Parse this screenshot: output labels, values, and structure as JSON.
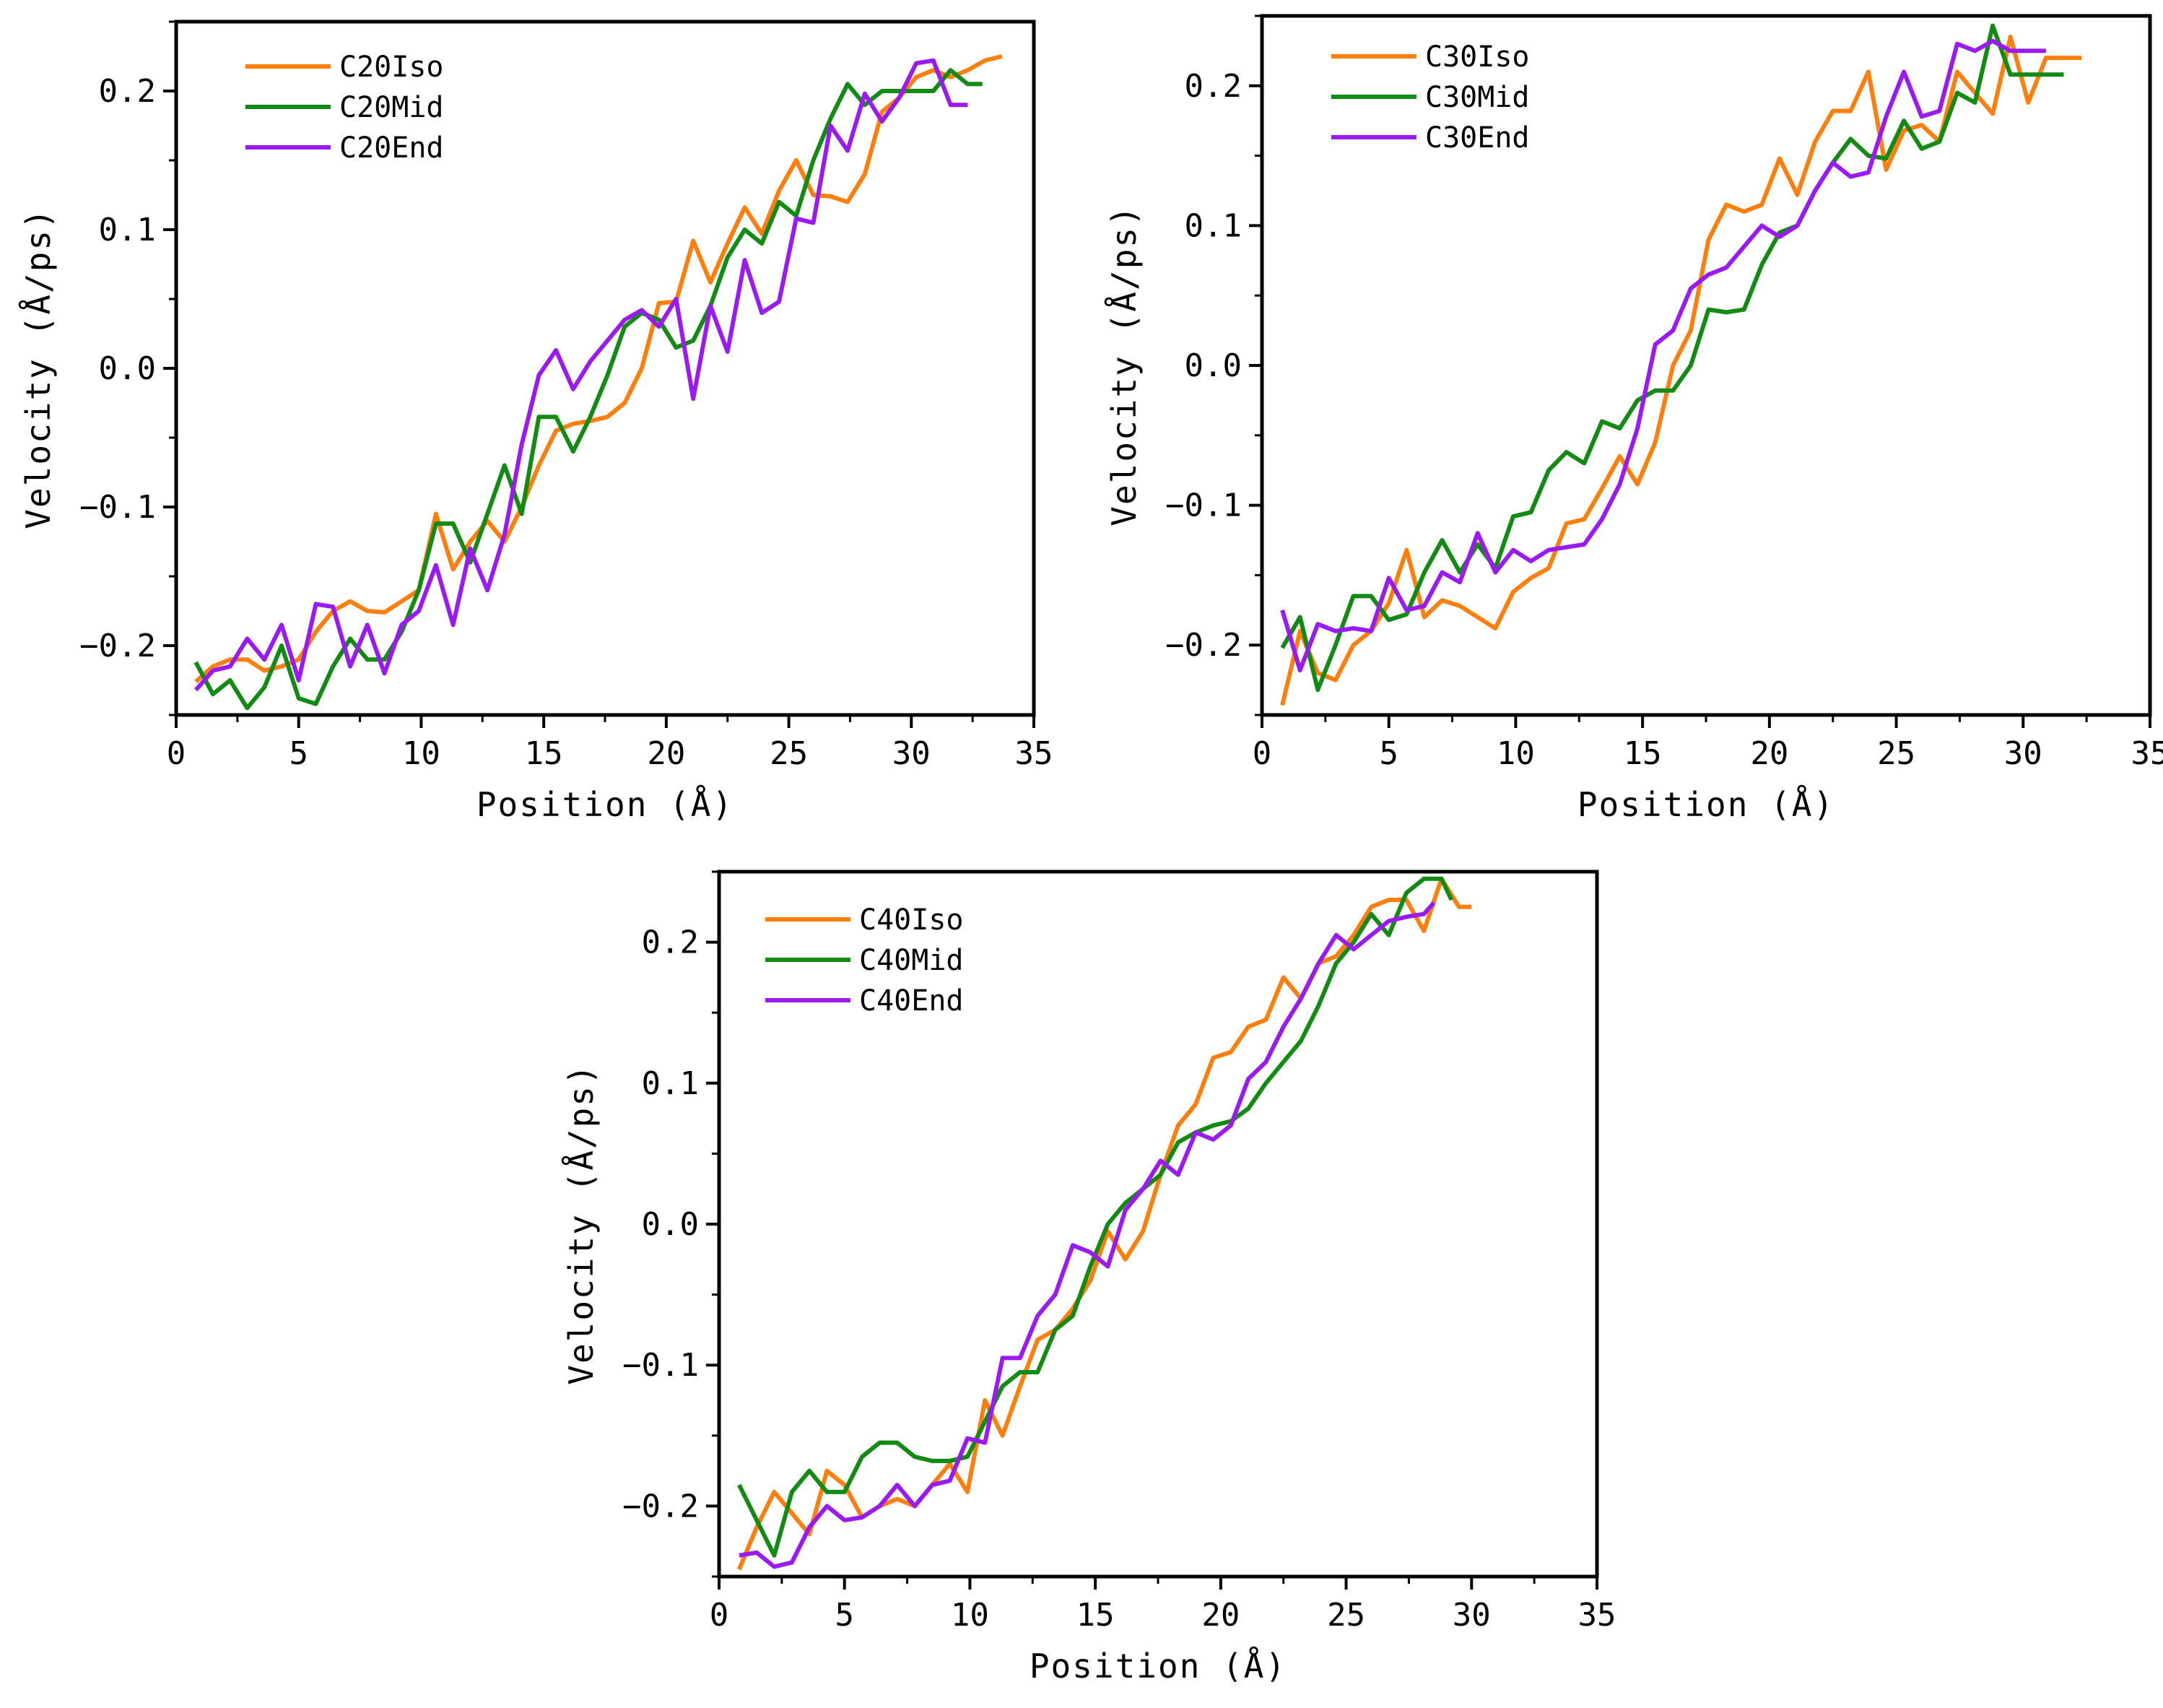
{
  "colors": {
    "iso": "#FF7F0E",
    "mid": "#138A13",
    "end": "#9A1BF2"
  },
  "chart_data": [
    {
      "type": "line",
      "title": "",
      "xlabel": "Position (Å)",
      "ylabel": "Velocity (Å/ps)",
      "xlim": [
        0,
        35
      ],
      "ylim": [
        -0.25,
        0.25
      ],
      "xticks": [
        0,
        5,
        10,
        15,
        20,
        25,
        30,
        35
      ],
      "xtick_labels": [
        "0",
        "5",
        "10",
        "15",
        "20",
        "25",
        "30",
        "35"
      ],
      "yticks": [
        -0.2,
        -0.1,
        0.0,
        0.1,
        0.2
      ],
      "ytick_labels": [
        "−0.2",
        "−0.1",
        "0.0",
        "0.1",
        "0.2"
      ],
      "legend_position": "top-left",
      "series": [
        {
          "name": "C20Iso",
          "color_key": "iso",
          "x": [
            0.8,
            1.5,
            2.2,
            2.9,
            3.6,
            4.3,
            5.0,
            5.7,
            6.4,
            7.1,
            7.8,
            8.5,
            9.2,
            9.9,
            10.6,
            11.3,
            12.0,
            12.7,
            13.4,
            14.1,
            14.8,
            15.5,
            16.2,
            16.9,
            17.6,
            18.3,
            19.0,
            19.7,
            20.4,
            21.1,
            21.8,
            22.5,
            23.2,
            23.9,
            24.6,
            25.3,
            26.0,
            26.7,
            27.4,
            28.1,
            28.8,
            29.5,
            30.2,
            30.9,
            31.6,
            32.3,
            33.0,
            33.7
          ],
          "y": [
            -0.226,
            -0.215,
            -0.21,
            -0.21,
            -0.218,
            -0.215,
            -0.21,
            -0.19,
            -0.175,
            -0.168,
            -0.175,
            -0.176,
            -0.168,
            -0.16,
            -0.105,
            -0.145,
            -0.125,
            -0.11,
            -0.125,
            -0.1,
            -0.07,
            -0.045,
            -0.04,
            -0.038,
            -0.035,
            -0.025,
            0.0,
            0.047,
            0.048,
            0.092,
            0.062,
            0.09,
            0.116,
            0.097,
            0.128,
            0.15,
            0.125,
            0.124,
            0.12,
            0.14,
            0.185,
            0.195,
            0.21,
            0.215,
            0.21,
            0.215,
            0.222,
            0.225
          ]
        },
        {
          "name": "C20Mid",
          "color_key": "mid",
          "x": [
            0.8,
            1.5,
            2.2,
            2.9,
            3.6,
            4.3,
            5.0,
            5.7,
            6.4,
            7.1,
            7.8,
            8.5,
            9.2,
            9.9,
            10.6,
            11.3,
            12.0,
            12.7,
            13.4,
            14.1,
            14.8,
            15.5,
            16.2,
            16.9,
            17.6,
            18.3,
            19.0,
            19.7,
            20.4,
            21.1,
            21.8,
            22.5,
            23.2,
            23.9,
            24.6,
            25.3,
            26.0,
            26.7,
            27.4,
            28.1,
            28.8,
            29.5,
            30.2,
            30.9,
            31.6,
            32.3,
            32.9
          ],
          "y": [
            -0.212,
            -0.235,
            -0.225,
            -0.245,
            -0.23,
            -0.2,
            -0.238,
            -0.242,
            -0.215,
            -0.195,
            -0.21,
            -0.21,
            -0.19,
            -0.16,
            -0.112,
            -0.112,
            -0.14,
            -0.105,
            -0.07,
            -0.105,
            -0.035,
            -0.035,
            -0.06,
            -0.035,
            -0.005,
            0.03,
            0.04,
            0.035,
            0.015,
            0.02,
            0.045,
            0.08,
            0.1,
            0.09,
            0.12,
            0.11,
            0.15,
            0.18,
            0.205,
            0.19,
            0.2,
            0.2,
            0.2,
            0.2,
            0.215,
            0.205,
            0.205
          ]
        },
        {
          "name": "C20End",
          "color_key": "end",
          "x": [
            0.8,
            1.5,
            2.2,
            2.9,
            3.6,
            4.3,
            5.0,
            5.7,
            6.4,
            7.1,
            7.8,
            8.5,
            9.2,
            9.9,
            10.6,
            11.3,
            12.0,
            12.7,
            13.4,
            14.1,
            14.8,
            15.5,
            16.2,
            16.9,
            17.6,
            18.3,
            19.0,
            19.7,
            20.4,
            21.1,
            21.8,
            22.5,
            23.2,
            23.9,
            24.6,
            25.3,
            26.0,
            26.7,
            27.4,
            28.1,
            28.8,
            29.5,
            30.2,
            30.9,
            31.6,
            32.3
          ],
          "y": [
            -0.232,
            -0.218,
            -0.215,
            -0.195,
            -0.21,
            -0.185,
            -0.225,
            -0.17,
            -0.172,
            -0.215,
            -0.185,
            -0.22,
            -0.185,
            -0.175,
            -0.142,
            -0.185,
            -0.13,
            -0.16,
            -0.12,
            -0.055,
            -0.005,
            0.013,
            -0.015,
            0.005,
            0.02,
            0.035,
            0.042,
            0.03,
            0.05,
            -0.022,
            0.045,
            0.012,
            0.078,
            0.04,
            0.048,
            0.108,
            0.105,
            0.175,
            0.157,
            0.198,
            0.178,
            0.195,
            0.22,
            0.222,
            0.19,
            0.19
          ]
        }
      ]
    },
    {
      "type": "line",
      "title": "",
      "xlabel": "Position (Å)",
      "ylabel": "Velocity (Å/ps)",
      "xlim": [
        0,
        35
      ],
      "ylim": [
        -0.25,
        0.25
      ],
      "xticks": [
        0,
        5,
        10,
        15,
        20,
        25,
        30,
        35
      ],
      "xtick_labels": [
        "0",
        "5",
        "10",
        "15",
        "20",
        "25",
        "30",
        "35"
      ],
      "yticks": [
        -0.2,
        -0.1,
        0.0,
        0.1,
        0.2
      ],
      "ytick_labels": [
        "−0.2",
        "−0.1",
        "0.0",
        "0.1",
        "0.2"
      ],
      "legend_position": "top-left",
      "series": [
        {
          "name": "C30Iso",
          "color_key": "iso",
          "x": [
            0.8,
            1.5,
            2.2,
            2.9,
            3.6,
            4.3,
            5.0,
            5.7,
            6.4,
            7.1,
            7.8,
            8.5,
            9.2,
            9.9,
            10.6,
            11.3,
            12.0,
            12.7,
            13.4,
            14.1,
            14.8,
            15.5,
            16.2,
            16.9,
            17.6,
            18.3,
            19.0,
            19.7,
            20.4,
            21.1,
            21.8,
            22.5,
            23.2,
            23.9,
            24.6,
            25.3,
            26.0,
            26.7,
            27.4,
            28.1,
            28.8,
            29.5,
            30.2,
            30.9,
            31.6,
            32.3
          ],
          "y": [
            -0.243,
            -0.19,
            -0.22,
            -0.225,
            -0.2,
            -0.19,
            -0.17,
            -0.132,
            -0.18,
            -0.168,
            -0.172,
            -0.18,
            -0.188,
            -0.162,
            -0.152,
            -0.145,
            -0.113,
            -0.11,
            -0.088,
            -0.065,
            -0.085,
            -0.055,
            0.0,
            0.025,
            0.09,
            0.115,
            0.11,
            0.115,
            0.148,
            0.122,
            0.16,
            0.182,
            0.182,
            0.21,
            0.14,
            0.168,
            0.172,
            0.16,
            0.21,
            0.195,
            0.18,
            0.235,
            0.188,
            0.22,
            0.22,
            0.22
          ]
        },
        {
          "name": "C30Mid",
          "color_key": "mid",
          "x": [
            0.8,
            1.5,
            2.2,
            2.9,
            3.6,
            4.3,
            5.0,
            5.7,
            6.4,
            7.1,
            7.8,
            8.5,
            9.2,
            9.9,
            10.6,
            11.3,
            12.0,
            12.7,
            13.4,
            14.1,
            14.8,
            15.5,
            16.2,
            16.9,
            17.6,
            18.3,
            19.0,
            19.7,
            20.4,
            21.1,
            21.8,
            22.5,
            23.2,
            23.9,
            24.6,
            25.3,
            26.0,
            26.7,
            27.4,
            28.1,
            28.8,
            29.5,
            30.2,
            30.9,
            31.6
          ],
          "y": [
            -0.202,
            -0.18,
            -0.232,
            -0.2,
            -0.165,
            -0.165,
            -0.182,
            -0.178,
            -0.148,
            -0.125,
            -0.148,
            -0.128,
            -0.145,
            -0.108,
            -0.105,
            -0.075,
            -0.062,
            -0.07,
            -0.04,
            -0.045,
            -0.025,
            -0.018,
            -0.018,
            0.0,
            0.04,
            0.038,
            0.04,
            0.072,
            0.095,
            0.1,
            0.125,
            0.145,
            0.162,
            0.15,
            0.148,
            0.175,
            0.155,
            0.16,
            0.195,
            0.188,
            0.243,
            0.208,
            0.208,
            0.208,
            0.208
          ]
        },
        {
          "name": "C30End",
          "color_key": "end",
          "x": [
            0.8,
            1.5,
            2.2,
            2.9,
            3.6,
            4.3,
            5.0,
            5.7,
            6.4,
            7.1,
            7.8,
            8.5,
            9.2,
            9.9,
            10.6,
            11.3,
            12.0,
            12.7,
            13.4,
            14.1,
            14.8,
            15.5,
            16.2,
            16.9,
            17.6,
            18.3,
            19.0,
            19.7,
            20.4,
            21.1,
            21.8,
            22.5,
            23.2,
            23.9,
            24.6,
            25.3,
            26.0,
            26.7,
            27.4,
            28.1,
            28.8,
            29.5,
            30.2,
            30.9
          ],
          "y": [
            -0.175,
            -0.218,
            -0.185,
            -0.19,
            -0.188,
            -0.19,
            -0.152,
            -0.175,
            -0.172,
            -0.148,
            -0.155,
            -0.12,
            -0.148,
            -0.132,
            -0.14,
            -0.132,
            -0.13,
            -0.128,
            -0.11,
            -0.085,
            -0.045,
            0.015,
            0.025,
            0.055,
            0.065,
            0.07,
            0.085,
            0.1,
            0.092,
            0.1,
            0.125,
            0.145,
            0.135,
            0.138,
            0.178,
            0.21,
            0.178,
            0.182,
            0.23,
            0.225,
            0.232,
            0.225,
            0.225,
            0.225
          ]
        }
      ]
    },
    {
      "type": "line",
      "title": "",
      "xlabel": "Position (Å)",
      "ylabel": "Velocity (Å/ps)",
      "xlim": [
        0,
        35
      ],
      "ylim": [
        -0.25,
        0.25
      ],
      "xticks": [
        0,
        5,
        10,
        15,
        20,
        25,
        30,
        35
      ],
      "xtick_labels": [
        "0",
        "5",
        "10",
        "15",
        "20",
        "25",
        "30",
        "35"
      ],
      "yticks": [
        -0.2,
        -0.1,
        0.0,
        0.1,
        0.2
      ],
      "ytick_labels": [
        "−0.2",
        "−0.1",
        "0.0",
        "0.1",
        "0.2"
      ],
      "legend_position": "top-left",
      "series": [
        {
          "name": "C40Iso",
          "color_key": "iso",
          "x": [
            0.8,
            1.5,
            2.2,
            2.9,
            3.6,
            4.3,
            5.0,
            5.7,
            6.4,
            7.1,
            7.8,
            8.5,
            9.2,
            9.9,
            10.6,
            11.3,
            12.0,
            12.7,
            13.4,
            14.1,
            14.8,
            15.5,
            16.2,
            16.9,
            17.6,
            18.3,
            19.0,
            19.7,
            20.4,
            21.1,
            21.8,
            22.5,
            23.2,
            23.9,
            24.6,
            25.3,
            26.0,
            26.7,
            27.4,
            28.1,
            28.8,
            29.5,
            30.0
          ],
          "y": [
            -0.245,
            -0.215,
            -0.19,
            -0.205,
            -0.22,
            -0.175,
            -0.185,
            -0.208,
            -0.2,
            -0.195,
            -0.2,
            -0.185,
            -0.17,
            -0.19,
            -0.125,
            -0.15,
            -0.115,
            -0.082,
            -0.075,
            -0.06,
            -0.04,
            -0.005,
            -0.025,
            -0.005,
            0.035,
            0.07,
            0.085,
            0.118,
            0.122,
            0.14,
            0.145,
            0.175,
            0.16,
            0.185,
            0.19,
            0.205,
            0.225,
            0.23,
            0.23,
            0.208,
            0.245,
            0.225,
            0.225
          ]
        },
        {
          "name": "C40Mid",
          "color_key": "mid",
          "x": [
            0.8,
            1.5,
            2.2,
            2.9,
            3.6,
            4.3,
            5.0,
            5.7,
            6.4,
            7.1,
            7.8,
            8.5,
            9.2,
            9.9,
            10.6,
            11.3,
            12.0,
            12.7,
            13.4,
            14.1,
            14.8,
            15.5,
            16.2,
            16.9,
            17.6,
            18.3,
            19.0,
            19.7,
            20.4,
            21.1,
            21.8,
            22.5,
            23.2,
            23.9,
            24.6,
            25.3,
            26.0,
            26.7,
            27.4,
            28.1,
            28.8,
            29.2
          ],
          "y": [
            -0.185,
            -0.21,
            -0.235,
            -0.19,
            -0.175,
            -0.19,
            -0.19,
            -0.165,
            -0.155,
            -0.155,
            -0.165,
            -0.168,
            -0.168,
            -0.165,
            -0.14,
            -0.115,
            -0.105,
            -0.105,
            -0.075,
            -0.065,
            -0.03,
            0.0,
            0.015,
            0.025,
            0.035,
            0.058,
            0.065,
            0.07,
            0.073,
            0.082,
            0.1,
            0.115,
            0.13,
            0.155,
            0.185,
            0.2,
            0.22,
            0.205,
            0.235,
            0.245,
            0.245,
            0.23
          ]
        },
        {
          "name": "C40End",
          "color_key": "end",
          "x": [
            0.8,
            1.5,
            2.2,
            2.9,
            3.6,
            4.3,
            5.0,
            5.7,
            6.4,
            7.1,
            7.8,
            8.5,
            9.2,
            9.9,
            10.6,
            11.3,
            12.0,
            12.7,
            13.4,
            14.1,
            14.8,
            15.5,
            16.2,
            16.9,
            17.6,
            18.3,
            19.0,
            19.7,
            20.4,
            21.1,
            21.8,
            22.5,
            23.2,
            23.9,
            24.6,
            25.3,
            26.0,
            26.7,
            27.4,
            28.1,
            28.5
          ],
          "y": [
            -0.235,
            -0.233,
            -0.243,
            -0.24,
            -0.215,
            -0.2,
            -0.21,
            -0.208,
            -0.2,
            -0.185,
            -0.2,
            -0.185,
            -0.182,
            -0.152,
            -0.155,
            -0.095,
            -0.095,
            -0.065,
            -0.05,
            -0.015,
            -0.02,
            -0.03,
            0.01,
            0.025,
            0.045,
            0.035,
            0.065,
            0.06,
            0.07,
            0.103,
            0.115,
            0.14,
            0.16,
            0.185,
            0.205,
            0.195,
            0.205,
            0.215,
            0.218,
            0.22,
            0.228
          ]
        }
      ]
    }
  ]
}
